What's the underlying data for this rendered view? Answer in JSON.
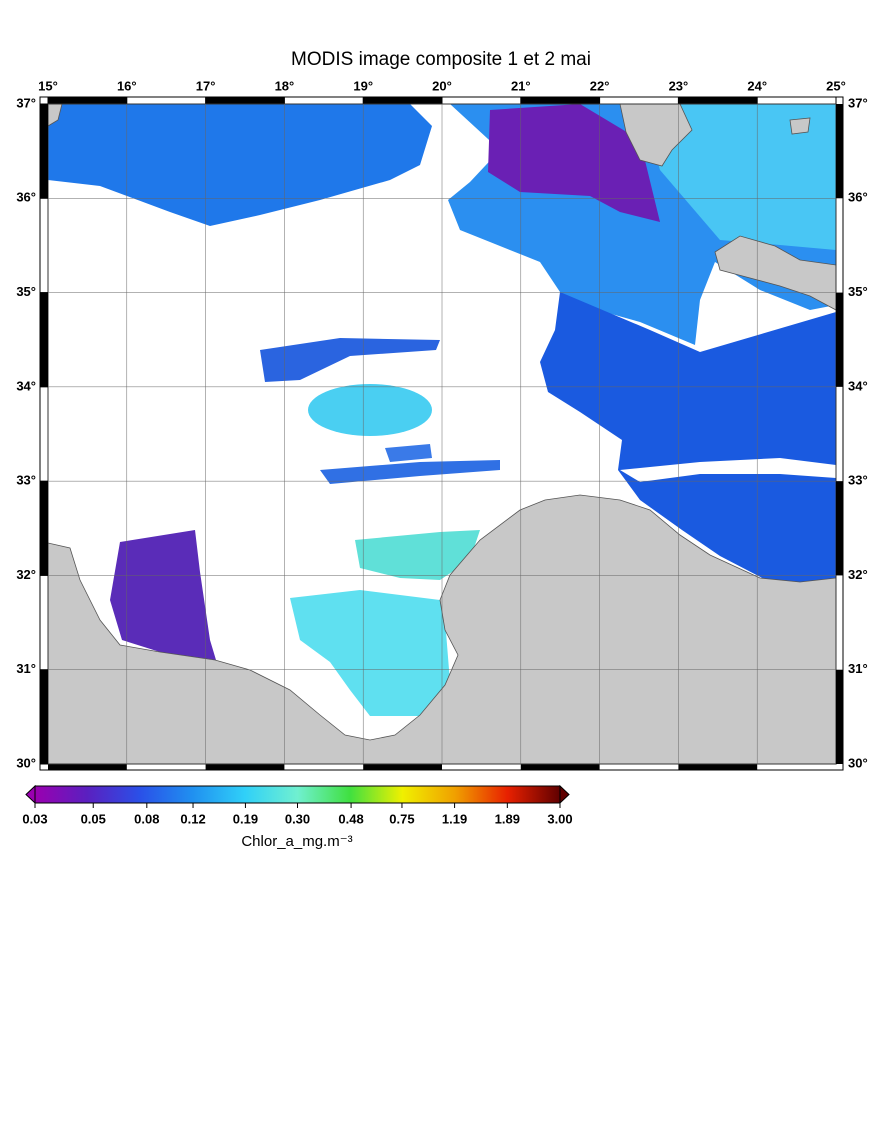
{
  "title": "MODIS image composite 1 et 2 mai",
  "map": {
    "xlim": [
      15,
      25
    ],
    "ylim": [
      30,
      37
    ],
    "xticks": [
      {
        "value": 15,
        "label": "15°"
      },
      {
        "value": 16,
        "label": "16°"
      },
      {
        "value": 17,
        "label": "17°"
      },
      {
        "value": 18,
        "label": "18°"
      },
      {
        "value": 19,
        "label": "19°"
      },
      {
        "value": 20,
        "label": "20°"
      },
      {
        "value": 21,
        "label": "21°"
      },
      {
        "value": 22,
        "label": "22°"
      },
      {
        "value": 23,
        "label": "23°"
      },
      {
        "value": 24,
        "label": "24°"
      },
      {
        "value": 25,
        "label": "25°"
      }
    ],
    "yticks": [
      {
        "value": 30,
        "label": "30°"
      },
      {
        "value": 31,
        "label": "31°"
      },
      {
        "value": 32,
        "label": "32°"
      },
      {
        "value": 33,
        "label": "33°"
      },
      {
        "value": 34,
        "label": "34°"
      },
      {
        "value": 35,
        "label": "35°"
      },
      {
        "value": 36,
        "label": "36°"
      },
      {
        "value": 37,
        "label": "37°"
      }
    ],
    "grid": true
  },
  "colorbar": {
    "title": "Chlor_a_mg.m⁻³",
    "log": true,
    "lim": [
      0.03,
      3
    ],
    "ticks": [
      0.03,
      0.05,
      0.08,
      0.12,
      0.19,
      {
        "value": 0.3,
        "label": "0.30"
      },
      0.48,
      0.75,
      1.19,
      1.89,
      {
        "value": 3,
        "label": "3.00"
      }
    ],
    "colors": [
      "#9a00b0",
      "#5a20c0",
      "#2a50e8",
      "#2090f0",
      "#30d0f8",
      "#70f0d0",
      "#40e040",
      "#f0f000",
      "#f0a000",
      "#e82000",
      "#600000"
    ]
  }
}
